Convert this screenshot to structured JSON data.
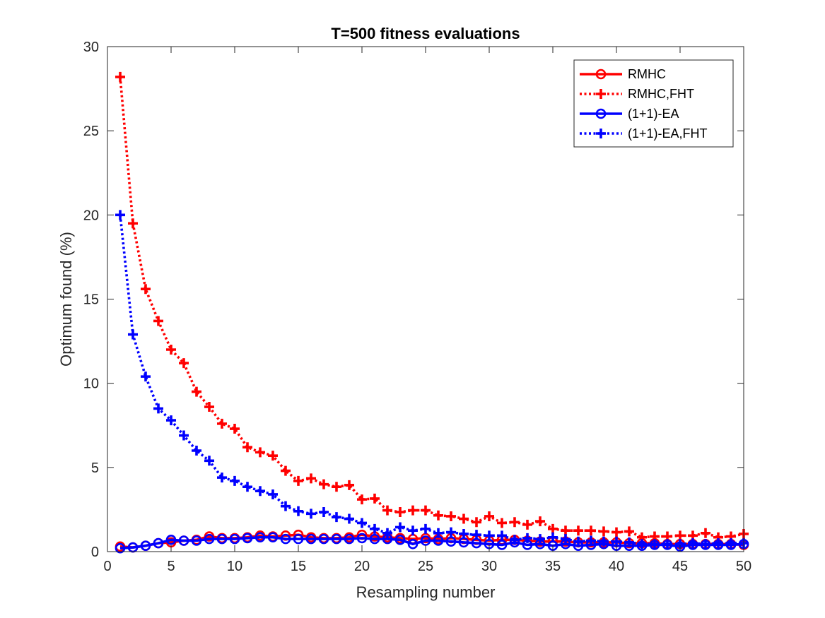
{
  "chart_data": {
    "type": "line",
    "title": "T=500 fitness evaluations",
    "xlabel": "Resampling number",
    "ylabel": "Optimum found (%)",
    "xlim": [
      0,
      50
    ],
    "ylim": [
      0,
      30
    ],
    "xticks": [
      0,
      5,
      10,
      15,
      20,
      25,
      30,
      35,
      40,
      45,
      50
    ],
    "yticks": [
      0,
      5,
      10,
      15,
      20,
      25,
      30
    ],
    "grid": false,
    "legend_position": "top-right",
    "x": [
      1,
      2,
      3,
      4,
      5,
      6,
      7,
      8,
      9,
      10,
      11,
      12,
      13,
      14,
      15,
      16,
      17,
      18,
      19,
      20,
      21,
      22,
      23,
      24,
      25,
      26,
      27,
      28,
      29,
      30,
      31,
      32,
      33,
      34,
      35,
      36,
      37,
      38,
      39,
      40,
      41,
      42,
      43,
      44,
      45,
      46,
      47,
      48,
      49,
      50
    ],
    "series": [
      {
        "name": "RMHC",
        "color": "#ff0000",
        "line_style": "solid",
        "marker": "circle",
        "values": [
          0.3,
          0.25,
          0.35,
          0.5,
          0.55,
          0.65,
          0.7,
          0.9,
          0.8,
          0.8,
          0.85,
          0.95,
          0.9,
          0.95,
          1.0,
          0.85,
          0.8,
          0.8,
          0.85,
          1.0,
          0.9,
          0.85,
          0.8,
          0.75,
          0.8,
          0.75,
          0.8,
          0.75,
          0.7,
          0.65,
          0.7,
          0.7,
          0.65,
          0.6,
          0.6,
          0.6,
          0.55,
          0.55,
          0.55,
          0.55,
          0.5,
          0.5,
          0.5,
          0.45,
          0.45,
          0.45,
          0.45,
          0.45,
          0.45,
          0.4
        ]
      },
      {
        "name": "RMHC,FHT",
        "color": "#ff0000",
        "line_style": "dotted",
        "marker": "plus",
        "values": [
          28.2,
          19.5,
          15.6,
          13.7,
          12.0,
          11.2,
          9.5,
          8.6,
          7.6,
          7.3,
          6.2,
          5.9,
          5.7,
          4.8,
          4.2,
          4.35,
          4.0,
          3.85,
          3.95,
          3.1,
          3.15,
          2.45,
          2.35,
          2.45,
          2.45,
          2.15,
          2.1,
          1.95,
          1.75,
          2.1,
          1.7,
          1.75,
          1.6,
          1.8,
          1.35,
          1.25,
          1.25,
          1.25,
          1.2,
          1.15,
          1.2,
          0.85,
          0.9,
          0.9,
          0.95,
          0.95,
          1.1,
          0.85,
          0.9,
          1.05
        ]
      },
      {
        "name": "(1+1)-EA",
        "color": "#0000ff",
        "line_style": "solid",
        "marker": "circle",
        "values": [
          0.2,
          0.25,
          0.35,
          0.5,
          0.7,
          0.65,
          0.65,
          0.75,
          0.75,
          0.75,
          0.8,
          0.85,
          0.85,
          0.75,
          0.75,
          0.75,
          0.75,
          0.75,
          0.75,
          0.8,
          0.75,
          0.75,
          0.7,
          0.45,
          0.65,
          0.65,
          0.6,
          0.55,
          0.5,
          0.45,
          0.4,
          0.55,
          0.4,
          0.45,
          0.35,
          0.45,
          0.35,
          0.4,
          0.45,
          0.35,
          0.35,
          0.35,
          0.4,
          0.4,
          0.3,
          0.4,
          0.4,
          0.4,
          0.4,
          0.45
        ]
      },
      {
        "name": "(1+1)-EA,FHT",
        "color": "#0000ff",
        "line_style": "dotted",
        "marker": "plus",
        "values": [
          20.0,
          12.9,
          10.4,
          8.5,
          7.8,
          6.9,
          6.0,
          5.4,
          4.4,
          4.2,
          3.85,
          3.6,
          3.4,
          2.7,
          2.4,
          2.25,
          2.35,
          2.05,
          1.95,
          1.7,
          1.35,
          1.1,
          1.45,
          1.25,
          1.35,
          1.1,
          1.15,
          1.05,
          1.0,
          0.95,
          0.95,
          0.7,
          0.8,
          0.75,
          0.85,
          0.75,
          0.6,
          0.65,
          0.6,
          0.6,
          0.55,
          0.45,
          0.45,
          0.45,
          0.45,
          0.5,
          0.45,
          0.5,
          0.5,
          0.5
        ]
      }
    ]
  }
}
